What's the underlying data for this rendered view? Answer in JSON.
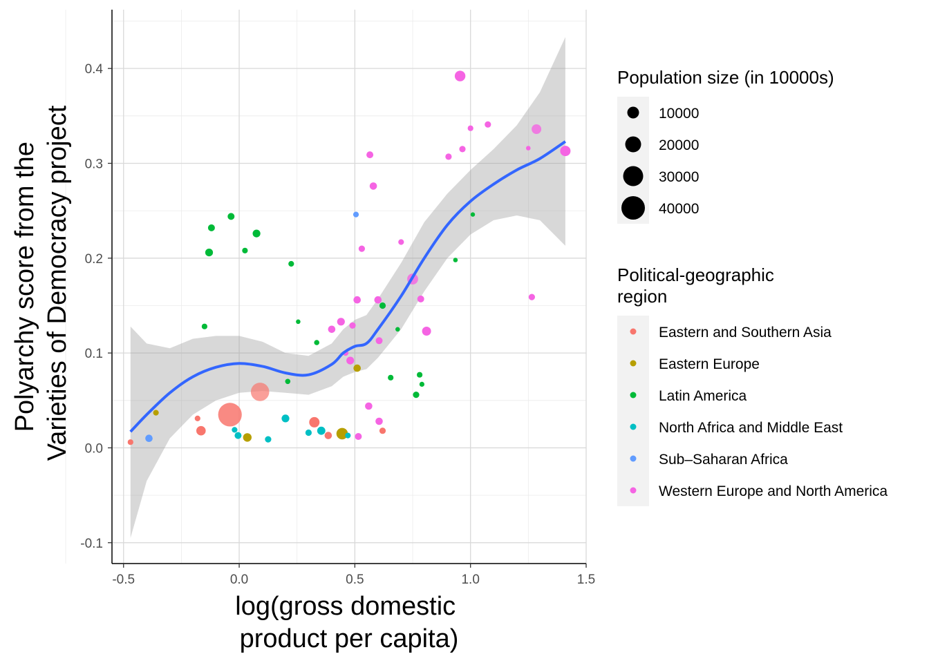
{
  "chart_data": {
    "type": "scatter",
    "title": "",
    "xlabel_lines": [
      "log(gross domestic",
      "product per capita)"
    ],
    "ylabel_lines": [
      "Polyarchy score from the",
      "Varieties of Democracy project"
    ],
    "xlim": [
      -0.55,
      1.5
    ],
    "ylim": [
      -0.122,
      0.462
    ],
    "x_ticks": [
      -0.5,
      0.0,
      0.5,
      1.0,
      1.5
    ],
    "x_tick_labels": [
      "-0.5",
      "0.0",
      "0.5",
      "1.0",
      "1.5"
    ],
    "y_ticks": [
      -0.1,
      0.0,
      0.1,
      0.2,
      0.3,
      0.4
    ],
    "y_tick_labels": [
      "-0.1",
      "0.0",
      "0.1",
      "0.2",
      "0.3",
      "0.4"
    ],
    "grid": true,
    "legend_position": "right",
    "size_legend": {
      "title": "Population size (in 10000s)",
      "labels": [
        "10000",
        "20000",
        "30000",
        "40000"
      ],
      "values": [
        10000,
        20000,
        30000,
        40000
      ]
    },
    "color_legend": {
      "title_lines": [
        "Political-geographic",
        "region"
      ],
      "labels": [
        "Eastern and Southern Asia",
        "Eastern Europe",
        "Latin America",
        "North Africa and Middle East",
        "Sub–Saharan Africa",
        "Western Europe and North America"
      ],
      "colors": [
        "#F8766D",
        "#B79F00",
        "#00BA38",
        "#00BFC4",
        "#619CFF",
        "#F564E3"
      ]
    },
    "smooth": {
      "color": "#3366FF",
      "band_color": "#999999",
      "x": [
        -0.47,
        -0.4,
        -0.3,
        -0.2,
        -0.1,
        0.0,
        0.1,
        0.2,
        0.3,
        0.4,
        0.45,
        0.5,
        0.55,
        0.6,
        0.7,
        0.8,
        0.9,
        1.0,
        1.1,
        1.2,
        1.3,
        1.41
      ],
      "y": [
        0.017,
        0.035,
        0.058,
        0.075,
        0.085,
        0.089,
        0.086,
        0.079,
        0.077,
        0.088,
        0.1,
        0.107,
        0.11,
        0.125,
        0.16,
        0.2,
        0.235,
        0.26,
        0.278,
        0.293,
        0.305,
        0.323
      ],
      "lower": [
        -0.095,
        -0.035,
        0.01,
        0.035,
        0.05,
        0.058,
        0.06,
        0.058,
        0.056,
        0.065,
        0.075,
        0.08,
        0.083,
        0.095,
        0.125,
        0.165,
        0.2,
        0.225,
        0.24,
        0.245,
        0.24,
        0.213
      ],
      "upper": [
        0.128,
        0.11,
        0.105,
        0.115,
        0.118,
        0.118,
        0.112,
        0.1,
        0.097,
        0.11,
        0.125,
        0.135,
        0.14,
        0.157,
        0.195,
        0.238,
        0.268,
        0.293,
        0.315,
        0.34,
        0.375,
        0.433
      ]
    },
    "series": [
      {
        "name": "Eastern and Southern Asia",
        "color": "#F8766D",
        "points": [
          {
            "x": -0.47,
            "y": 0.006,
            "size": 1500
          },
          {
            "x": -0.18,
            "y": 0.031,
            "size": 1500
          },
          {
            "x": -0.165,
            "y": 0.018,
            "size": 5500
          },
          {
            "x": -0.04,
            "y": 0.035,
            "size": 45000,
            "alpha": 0.85
          },
          {
            "x": 0.09,
            "y": 0.059,
            "size": 26000,
            "alpha": 0.7
          },
          {
            "x": 0.325,
            "y": 0.027,
            "size": 7000
          },
          {
            "x": 0.385,
            "y": 0.013,
            "size": 3000
          },
          {
            "x": 0.62,
            "y": 0.018,
            "size": 2000
          }
        ]
      },
      {
        "name": "Eastern Europe",
        "color": "#B79F00",
        "points": [
          {
            "x": -0.36,
            "y": 0.037,
            "size": 1500
          },
          {
            "x": 0.035,
            "y": 0.011,
            "size": 4500
          },
          {
            "x": 0.445,
            "y": 0.015,
            "size": 9000
          },
          {
            "x": 0.51,
            "y": 0.084,
            "size": 3000
          }
        ]
      },
      {
        "name": "Latin America",
        "color": "#00BA38",
        "points": [
          {
            "x": -0.15,
            "y": 0.128,
            "size": 1500
          },
          {
            "x": -0.13,
            "y": 0.206,
            "size": 3500
          },
          {
            "x": -0.12,
            "y": 0.232,
            "size": 2500
          },
          {
            "x": -0.035,
            "y": 0.244,
            "size": 2500
          },
          {
            "x": 0.025,
            "y": 0.208,
            "size": 1500
          },
          {
            "x": 0.075,
            "y": 0.226,
            "size": 3500
          },
          {
            "x": 0.21,
            "y": 0.07,
            "size": 1200
          },
          {
            "x": 0.225,
            "y": 0.194,
            "size": 1500
          },
          {
            "x": 0.255,
            "y": 0.133,
            "size": 800
          },
          {
            "x": 0.335,
            "y": 0.111,
            "size": 1200
          },
          {
            "x": 0.62,
            "y": 0.15,
            "size": 2000
          },
          {
            "x": 0.655,
            "y": 0.074,
            "size": 1500
          },
          {
            "x": 0.685,
            "y": 0.125,
            "size": 800
          },
          {
            "x": 0.765,
            "y": 0.056,
            "size": 2000
          },
          {
            "x": 0.78,
            "y": 0.077,
            "size": 1500
          },
          {
            "x": 0.79,
            "y": 0.067,
            "size": 1000
          },
          {
            "x": 0.935,
            "y": 0.198,
            "size": 800
          },
          {
            "x": 1.01,
            "y": 0.246,
            "size": 600
          }
        ]
      },
      {
        "name": "North Africa and Middle East",
        "color": "#00BFC4",
        "points": [
          {
            "x": -0.02,
            "y": 0.019,
            "size": 1500
          },
          {
            "x": -0.005,
            "y": 0.013,
            "size": 2500
          },
          {
            "x": 0.125,
            "y": 0.009,
            "size": 2000
          },
          {
            "x": 0.2,
            "y": 0.031,
            "size": 3500
          },
          {
            "x": 0.3,
            "y": 0.016,
            "size": 2000
          },
          {
            "x": 0.355,
            "y": 0.018,
            "size": 4000
          },
          {
            "x": 0.47,
            "y": 0.013,
            "size": 1500
          }
        ]
      },
      {
        "name": "Sub–Saharan Africa",
        "color": "#619CFF",
        "points": [
          {
            "x": -0.39,
            "y": 0.01,
            "size": 3000
          },
          {
            "x": 0.505,
            "y": 0.246,
            "size": 1500
          }
        ]
      },
      {
        "name": "Western Europe and North America",
        "color": "#F564E3",
        "points": [
          {
            "x": 0.4,
            "y": 0.125,
            "size": 3000
          },
          {
            "x": 0.44,
            "y": 0.133,
            "size": 3500
          },
          {
            "x": 0.46,
            "y": 0.1,
            "size": 1500
          },
          {
            "x": 0.48,
            "y": 0.092,
            "size": 3500
          },
          {
            "x": 0.49,
            "y": 0.129,
            "size": 2000
          },
          {
            "x": 0.51,
            "y": 0.156,
            "size": 3000
          },
          {
            "x": 0.515,
            "y": 0.012,
            "size": 2500
          },
          {
            "x": 0.53,
            "y": 0.21,
            "size": 2000
          },
          {
            "x": 0.56,
            "y": 0.044,
            "size": 3000
          },
          {
            "x": 0.565,
            "y": 0.309,
            "size": 2500
          },
          {
            "x": 0.58,
            "y": 0.276,
            "size": 3000
          },
          {
            "x": 0.6,
            "y": 0.156,
            "size": 3000
          },
          {
            "x": 0.605,
            "y": 0.028,
            "size": 3000
          },
          {
            "x": 0.605,
            "y": 0.113,
            "size": 2500
          },
          {
            "x": 0.7,
            "y": 0.217,
            "size": 1500
          },
          {
            "x": 0.75,
            "y": 0.178,
            "size": 8000,
            "alpha": 0.8
          },
          {
            "x": 0.785,
            "y": 0.157,
            "size": 2500
          },
          {
            "x": 0.81,
            "y": 0.123,
            "size": 5000
          },
          {
            "x": 0.905,
            "y": 0.307,
            "size": 2000
          },
          {
            "x": 0.955,
            "y": 0.392,
            "size": 7500
          },
          {
            "x": 0.965,
            "y": 0.315,
            "size": 2000
          },
          {
            "x": 1.0,
            "y": 0.337,
            "size": 1500
          },
          {
            "x": 1.075,
            "y": 0.341,
            "size": 2000
          },
          {
            "x": 1.25,
            "y": 0.316,
            "size": 800
          },
          {
            "x": 1.265,
            "y": 0.159,
            "size": 2000
          },
          {
            "x": 1.285,
            "y": 0.336,
            "size": 6000,
            "alpha": 0.8
          },
          {
            "x": 1.41,
            "y": 0.313,
            "size": 7000
          }
        ]
      }
    ]
  }
}
